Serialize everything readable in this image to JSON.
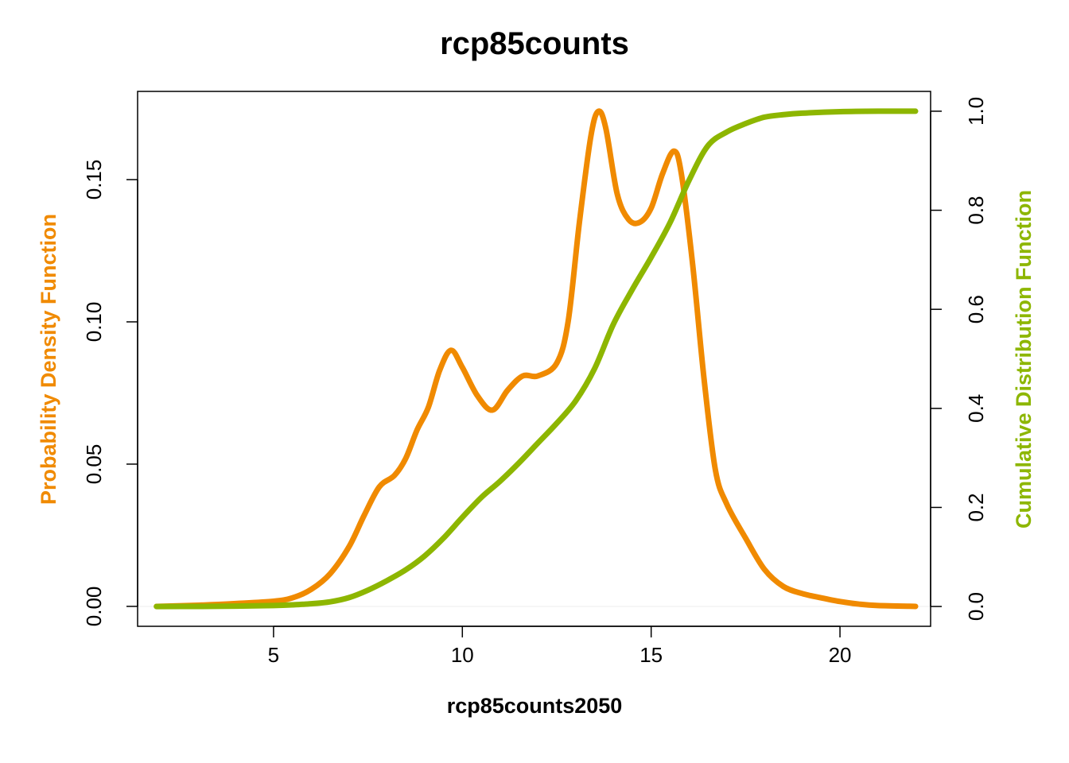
{
  "chart_data": {
    "type": "line",
    "title": "rcp85counts",
    "xlabel": "rcp85counts2050",
    "ylabel_left": "Probability Density Function",
    "ylabel_right": "Cumulative Distribution Function",
    "xlim": [
      1.4,
      22.4
    ],
    "ylim_left": [
      -0.007,
      0.181
    ],
    "ylim_right": [
      -0.04,
      1.04
    ],
    "x_ticks": [
      5,
      10,
      15,
      20
    ],
    "x_tick_labels": [
      "5",
      "10",
      "15",
      "20"
    ],
    "y_left_ticks": [
      0.0,
      0.05,
      0.1,
      0.15
    ],
    "y_left_tick_labels": [
      "0.00",
      "0.05",
      "0.10",
      "0.15"
    ],
    "y_right_ticks": [
      0.0,
      0.2,
      0.4,
      0.6,
      0.8,
      1.0
    ],
    "y_right_tick_labels": [
      "0.0",
      "0.2",
      "0.4",
      "0.6",
      "0.8",
      "1.0"
    ],
    "grid": false,
    "colors": {
      "pdf": "#F08A00",
      "cdf": "#8DB600",
      "axis": "#000000"
    },
    "series": [
      {
        "name": "Probability Density Function",
        "axis": "left",
        "color": "#F08A00",
        "x": [
          1.9,
          3.0,
          4.0,
          5.0,
          5.5,
          6.0,
          6.5,
          7.0,
          7.4,
          7.8,
          8.2,
          8.5,
          8.8,
          9.1,
          9.4,
          9.7,
          10.0,
          10.4,
          10.8,
          11.2,
          11.6,
          12.0,
          12.5,
          12.8,
          13.1,
          13.4,
          13.6,
          13.8,
          14.1,
          14.4,
          14.7,
          15.0,
          15.3,
          15.6,
          15.8,
          16.1,
          16.4,
          16.7,
          17.0,
          17.5,
          18.0,
          18.5,
          19.0,
          19.5,
          20.0,
          20.5,
          21.0,
          22.0
        ],
        "y": [
          0.0,
          0.0004,
          0.001,
          0.0018,
          0.003,
          0.006,
          0.0115,
          0.021,
          0.032,
          0.042,
          0.046,
          0.052,
          0.062,
          0.07,
          0.083,
          0.09,
          0.084,
          0.074,
          0.069,
          0.076,
          0.081,
          0.081,
          0.0855,
          0.1,
          0.135,
          0.165,
          0.174,
          0.168,
          0.145,
          0.136,
          0.135,
          0.14,
          0.152,
          0.16,
          0.152,
          0.12,
          0.08,
          0.048,
          0.036,
          0.024,
          0.013,
          0.007,
          0.0045,
          0.003,
          0.0017,
          0.0008,
          0.0003,
          0.0
        ]
      },
      {
        "name": "Cumulative Distribution Function",
        "axis": "right",
        "color": "#8DB600",
        "x": [
          1.9,
          3.0,
          4.0,
          5.0,
          5.5,
          6.0,
          6.5,
          7.0,
          7.5,
          8.0,
          8.5,
          9.0,
          9.5,
          10.0,
          10.5,
          11.0,
          11.5,
          12.0,
          12.5,
          13.0,
          13.5,
          14.0,
          14.5,
          15.0,
          15.5,
          16.0,
          16.5,
          17.0,
          17.5,
          18.0,
          18.5,
          19.0,
          20.0,
          21.0,
          22.0
        ],
        "y": [
          0.0,
          0.0001,
          0.0007,
          0.002,
          0.0033,
          0.0055,
          0.0095,
          0.018,
          0.033,
          0.052,
          0.074,
          0.102,
          0.138,
          0.18,
          0.22,
          0.253,
          0.29,
          0.33,
          0.37,
          0.415,
          0.48,
          0.57,
          0.64,
          0.705,
          0.775,
          0.86,
          0.93,
          0.958,
          0.975,
          0.988,
          0.993,
          0.996,
          0.999,
          1.0,
          1.0
        ]
      }
    ]
  }
}
